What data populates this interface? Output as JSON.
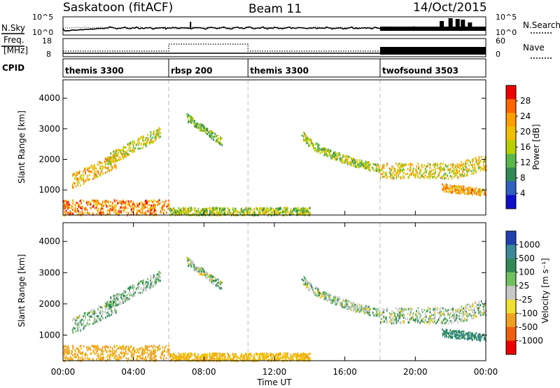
{
  "header": {
    "station": "Saskatoon (fitACF)",
    "beam": "Beam 11",
    "date": "14/Oct/2015"
  },
  "left_labels": {
    "nsky": "N.Sky",
    "freq_line1": "Freq.",
    "freq_line2": "[MHz]",
    "cpid": "CPID"
  },
  "right_labels": {
    "nsearch": "N.Search",
    "nave": "Nave"
  },
  "nsky_ticks": [
    "10^5",
    "10^0"
  ],
  "nsearch_ticks": [
    "10^5",
    "10^0"
  ],
  "freq_ticks": [
    "18",
    "8"
  ],
  "nave_ticks": [
    "60",
    "0"
  ],
  "cpid_segments": [
    {
      "label": "themis 3300",
      "start_hour": 0
    },
    {
      "label": "rbsp 200",
      "start_hour": 6
    },
    {
      "label": "themis 3300",
      "start_hour": 10.5
    },
    {
      "label": "twofsound 3503",
      "start_hour": 18
    }
  ],
  "power_panel": {
    "ylabel": "Slant Range [km]",
    "yticks": [
      "4000",
      "3000",
      "2000",
      "1000"
    ],
    "colorbar_label": "Power [dB]",
    "colorbar_ticks": [
      "28",
      "24",
      "20",
      "16",
      "12",
      "8",
      "4"
    ],
    "colorbar_colors": [
      "#ee0000",
      "#ff6600",
      "#ffa000",
      "#f0c000",
      "#b8d000",
      "#5ab84a",
      "#2e8b57",
      "#3060c0",
      "#1010cc"
    ]
  },
  "velocity_panel": {
    "ylabel": "Slant Range [km]",
    "yticks": [
      "4000",
      "3000",
      "2000",
      "1000"
    ],
    "colorbar_label": "Velocity [m s⁻¹]",
    "colorbar_ticks": [
      "1000",
      "500",
      "100",
      "25",
      "-25",
      "-100",
      "-500",
      "-1000"
    ],
    "colorbar_colors": [
      "#2040b0",
      "#3a8a9a",
      "#2e8b57",
      "#70c060",
      "#c8c8c8",
      "#f0e030",
      "#f0a020",
      "#f06010",
      "#ee0000"
    ]
  },
  "x_axis": {
    "label": "Time UT",
    "ticks": [
      "00:00",
      "04:00",
      "08:00",
      "12:00",
      "16:00",
      "20:00",
      "00:00"
    ]
  },
  "chart_data": {
    "type": "heatmap",
    "title": "Saskatoon (fitACF)",
    "subtitle": "Beam 11",
    "date": "14/Oct/2015",
    "xlabel": "Time UT",
    "ylabel": "Slant Range [km]",
    "xlim": [
      0,
      24
    ],
    "ylim": [
      180,
      4600
    ],
    "power_clim": [
      0,
      30
    ],
    "velocity_clim": [
      -1000,
      1000
    ],
    "mode_boundaries_hours": [
      6,
      10.5,
      18
    ],
    "scatter_regions": [
      {
        "name": "evening-sub-1000",
        "t0": 0.0,
        "t1": 6.0,
        "r0": 200,
        "r1": 700,
        "power": 24,
        "velocity": -120
      },
      {
        "name": "morning-echo-a",
        "t0": 0.5,
        "t1": 3.0,
        "r0": 900,
        "r1": 2000,
        "power": 20,
        "velocity": 10
      },
      {
        "name": "morning-echo-b",
        "t0": 2.5,
        "t1": 5.5,
        "r0": 1800,
        "r1": 3100,
        "power": 16,
        "velocity": 15
      },
      {
        "name": "rbsp-patch",
        "t0": 7.0,
        "t1": 9.0,
        "r0": 2600,
        "r1": 3500,
        "power": 12,
        "velocity": 5
      },
      {
        "name": "day-ground",
        "t0": 6.0,
        "t1": 14.0,
        "r0": 200,
        "r1": 450,
        "power": 14,
        "velocity": -80
      },
      {
        "name": "afternoon-arc",
        "t0": 13.5,
        "t1": 18.0,
        "r0": 1500,
        "r1": 3000,
        "power": 14,
        "velocity": 0
      },
      {
        "name": "twofsound-band",
        "t0": 18.0,
        "t1": 24.0,
        "r0": 1300,
        "r1": 2200,
        "power": 18,
        "velocity": 5
      },
      {
        "name": "twofsound-low",
        "t0": 21.5,
        "t1": 24.0,
        "r0": 700,
        "r1": 1400,
        "power": 22,
        "velocity": 100
      }
    ]
  }
}
